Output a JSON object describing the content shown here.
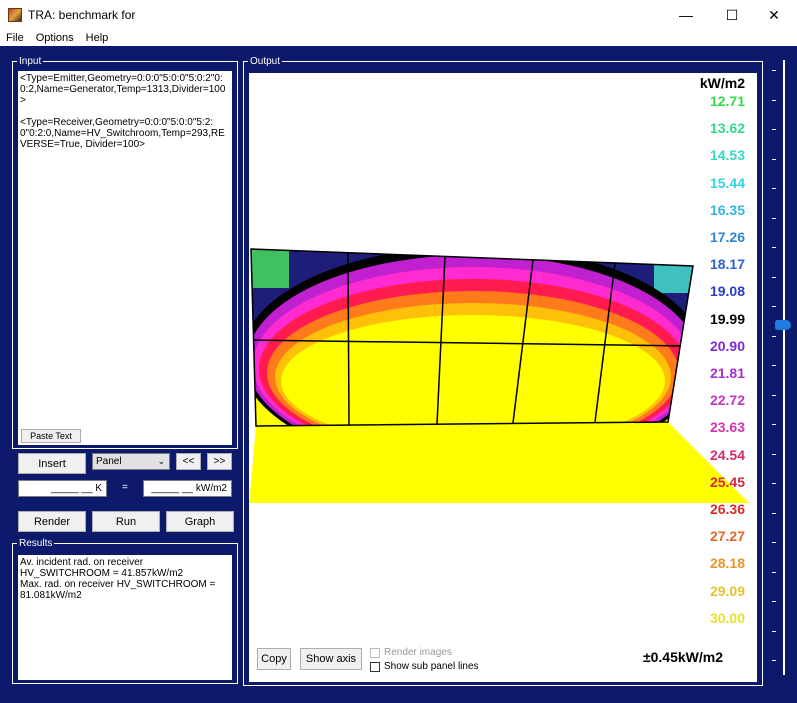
{
  "window": {
    "title": "TRA: benchmark for",
    "minimize_glyph": "—",
    "maximize_glyph": "☐",
    "close_glyph": "✕"
  },
  "menu": [
    "File",
    "Options",
    "Help"
  ],
  "input": {
    "legend": "Input",
    "text": "<Type=Emitter,Geometry=0:0:0\"5:0:0\"5:0:2\"0:0:2,Name=Generator,Temp=1313,Divider=100>\n\n<Type=Receiver,Geometry=0:0:0\"5:0:0\"5:2:0\"0:2:0,Name=HV_Switchroom,Temp=293,REVERSE=True, Divider=100>",
    "paste_button": "Paste Text"
  },
  "controls": {
    "insert_button": "Insert",
    "panel_select": "Panel",
    "prev_button": "<<",
    "next_button": ">>",
    "kelvin_field": "_____ __ K",
    "equals": "=",
    "flux_field": "_____ __ kW/m2",
    "render_button": "Render",
    "run_button": "Run",
    "graph_button": "Graph"
  },
  "results": {
    "legend": "Results",
    "text": "Av. incident rad. on receiver HV_SWITCHROOM = 41.857kW/m2\nMax. rad. on receiver HV_SWITCHROOM = 81.081kW/m2"
  },
  "output": {
    "legend": "Output",
    "unit_label": "kW/m2",
    "scale": [
      {
        "value": "12.71",
        "color": "#33d94a"
      },
      {
        "value": "13.62",
        "color": "#33d98a"
      },
      {
        "value": "14.53",
        "color": "#33d9c2"
      },
      {
        "value": "15.44",
        "color": "#33d2e0"
      },
      {
        "value": "16.35",
        "color": "#33b5e0"
      },
      {
        "value": "17.26",
        "color": "#2f86d6"
      },
      {
        "value": "18.17",
        "color": "#2d5fd0"
      },
      {
        "value": "19.08",
        "color": "#2b3bc8"
      },
      {
        "value": "19.99",
        "color": "#000000"
      },
      {
        "value": "20.90",
        "color": "#7a2ad6"
      },
      {
        "value": "21.81",
        "color": "#a630d0"
      },
      {
        "value": "22.72",
        "color": "#c234c8"
      },
      {
        "value": "23.63",
        "color": "#d634ae"
      },
      {
        "value": "24.54",
        "color": "#d62a6e"
      },
      {
        "value": "25.45",
        "color": "#d6283a"
      },
      {
        "value": "26.36",
        "color": "#d12e2a"
      },
      {
        "value": "27.27",
        "color": "#e0682e"
      },
      {
        "value": "28.18",
        "color": "#e8962e"
      },
      {
        "value": "29.09",
        "color": "#e8c22e"
      },
      {
        "value": "30.00",
        "color": "#e8e02e"
      }
    ],
    "tolerance": "±0.45kW/m2",
    "copy_button": "Copy",
    "show_axis_button": "Show axis",
    "render_images_label": "Render images",
    "show_sub_panel_label": "Show sub panel lines"
  }
}
